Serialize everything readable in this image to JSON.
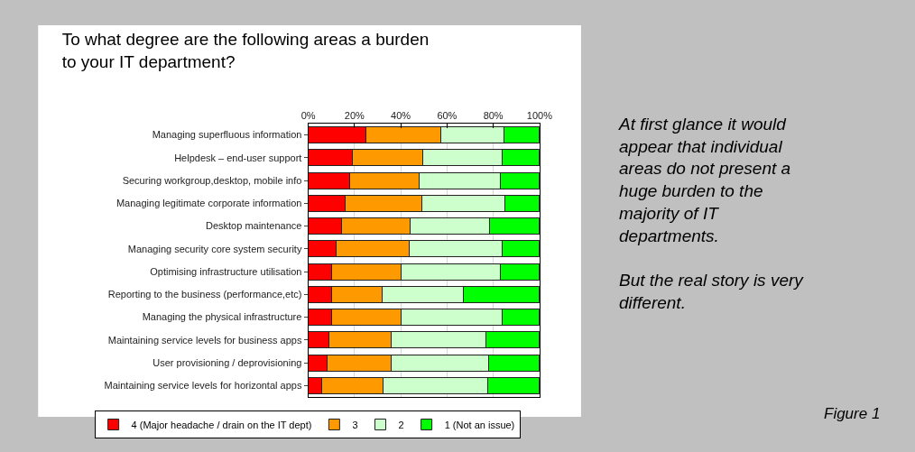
{
  "chart_data": {
    "type": "bar",
    "orientation": "horizontal",
    "stacked": true,
    "title": "To what degree are the following areas a burden\nto your IT department?",
    "categories": [
      "Managing superfluous information",
      "Helpdesk – end-user support",
      "Securing workgroup,desktop, mobile info",
      "Managing legitimate corporate information",
      "Desktop maintenance",
      "Managing security core system security",
      "Optimising infrastructure utilisation",
      "Reporting to the business (performance,etc)",
      "Managing the physical infrastructure",
      "Maintaining service levels for business apps",
      "User provisioning / deprovisioning",
      "Maintaining service levels for horizontal apps"
    ],
    "series": [
      {
        "name": "4 (Major headache / drain on the IT dept)",
        "color": "#ff0000",
        "values": [
          25,
          19,
          18,
          16,
          14.5,
          12,
          10,
          10,
          10,
          9,
          8,
          6
        ]
      },
      {
        "name": "3",
        "color": "#ff9900",
        "values": [
          32.5,
          30.5,
          30,
          33,
          29.5,
          31.5,
          30,
          22,
          30,
          27,
          28,
          26.5
        ]
      },
      {
        "name": "2",
        "color": "#ccffcc",
        "values": [
          27,
          34.5,
          35,
          36,
          34.5,
          40.5,
          43,
          35,
          44,
          41,
          42,
          45
        ]
      },
      {
        "name": "1 (Not an issue)",
        "color": "#00ff00",
        "values": [
          15.5,
          16,
          17,
          15,
          21.5,
          16,
          17,
          33,
          16,
          23,
          22,
          22.5
        ]
      }
    ],
    "xlim": [
      0,
      100
    ],
    "xticks": [
      {
        "value": 0,
        "label": "0%"
      },
      {
        "value": 20,
        "label": "20%"
      },
      {
        "value": 40,
        "label": "40%"
      },
      {
        "value": 60,
        "label": "60%"
      },
      {
        "value": 80,
        "label": "80%"
      },
      {
        "value": 100,
        "label": "100%"
      }
    ],
    "grid": "x",
    "legend": "bottom",
    "annotations": [
      "At first glance it would\nappear that individual\nareas do not present a\nhuge burden to the\nmajority of IT\ndepartments.\n\nBut the real story is very\ndifferent.",
      "Figure 1"
    ]
  }
}
